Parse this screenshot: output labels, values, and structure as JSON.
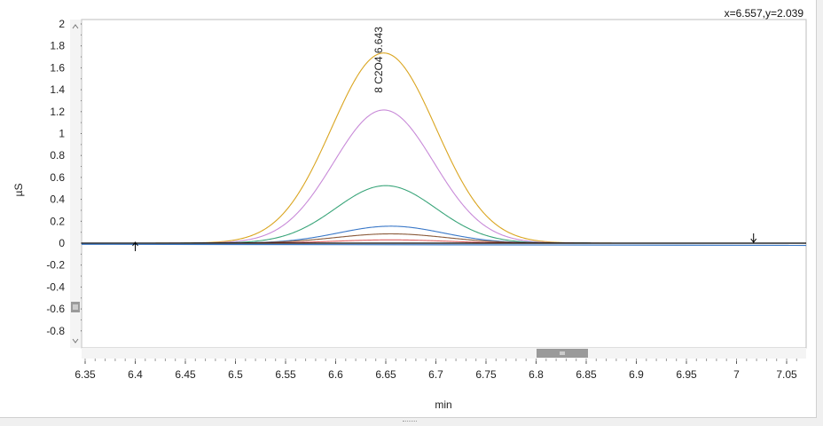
{
  "readout": "x=6.557,y=2.039",
  "chart_data": {
    "type": "line",
    "xlabel": "min",
    "ylabel": "µS",
    "xlim": [
      6.345,
      7.07
    ],
    "ylim": [
      -0.95,
      2.05
    ],
    "x_ticks": [
      "6.35",
      "6.4",
      "6.45",
      "6.5",
      "6.55",
      "6.6",
      "6.65",
      "6.7",
      "6.75",
      "6.8",
      "6.85",
      "6.9",
      "6.95",
      "7",
      "7.05"
    ],
    "y_ticks": [
      "2",
      "1.8",
      "1.6",
      "1.4",
      "1.2",
      "1",
      "0.8",
      "0.6",
      "0.4",
      "0.2",
      "0",
      "-0.2",
      "-0.4",
      "-0.6",
      "-0.8"
    ],
    "peak_annotation": {
      "text": "8 C2O4 6.643",
      "x": 6.643
    },
    "integration_markers": [
      6.4,
      7.017
    ],
    "series": [
      {
        "color": "#daa520",
        "peak_x": 6.648,
        "peak_y": 1.735,
        "sigma": 0.052
      },
      {
        "color": "#c88ad8",
        "peak_x": 6.648,
        "peak_y": 1.215,
        "sigma": 0.05
      },
      {
        "color": "#3aa57a",
        "peak_x": 6.65,
        "peak_y": 0.525,
        "sigma": 0.05
      },
      {
        "color": "#3a78c8",
        "peak_x": 6.655,
        "peak_y": 0.155,
        "sigma": 0.052
      },
      {
        "color": "#8a5a3a",
        "peak_x": 6.655,
        "peak_y": 0.085,
        "sigma": 0.055
      },
      {
        "color": "#e06060",
        "peak_x": 6.655,
        "peak_y": 0.03,
        "sigma": 0.055
      },
      {
        "color": "#000000",
        "peak_x": 6.65,
        "peak_y": 0.0,
        "sigma": 0.05
      }
    ]
  }
}
